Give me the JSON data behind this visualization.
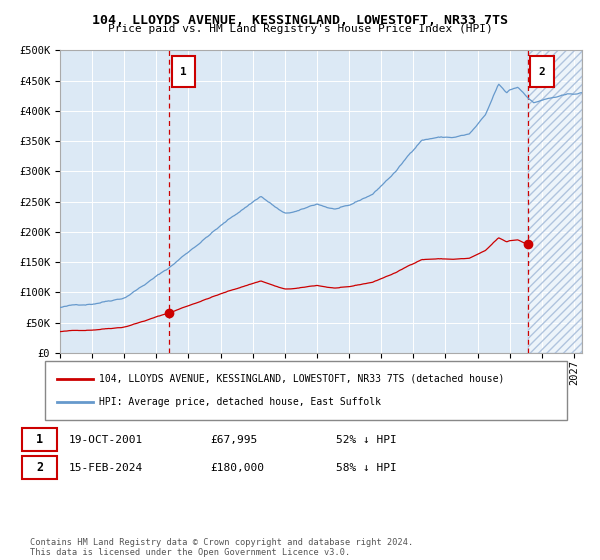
{
  "title1": "104, LLOYDS AVENUE, KESSINGLAND, LOWESTOFT, NR33 7TS",
  "title2": "Price paid vs. HM Land Registry's House Price Index (HPI)",
  "legend_label_red": "104, LLOYDS AVENUE, KESSINGLAND, LOWESTOFT, NR33 7TS (detached house)",
  "legend_label_blue": "HPI: Average price, detached house, East Suffolk",
  "annotation1_date": "19-OCT-2001",
  "annotation1_price": "£67,995",
  "annotation1_hpi": "52% ↓ HPI",
  "annotation2_date": "15-FEB-2024",
  "annotation2_price": "£180,000",
  "annotation2_hpi": "58% ↓ HPI",
  "footer": "Contains HM Land Registry data © Crown copyright and database right 2024.\nThis data is licensed under the Open Government Licence v3.0.",
  "bg_color": "#dce9f5",
  "grid_color": "#ffffff",
  "red_color": "#cc0000",
  "blue_color": "#6699cc",
  "sale1_year": 2001.8,
  "sale1_value": 67995,
  "sale2_year": 2024.12,
  "sale2_value": 180000,
  "ylim_max": 500000,
  "xstart": 1995.0,
  "xend": 2027.5
}
